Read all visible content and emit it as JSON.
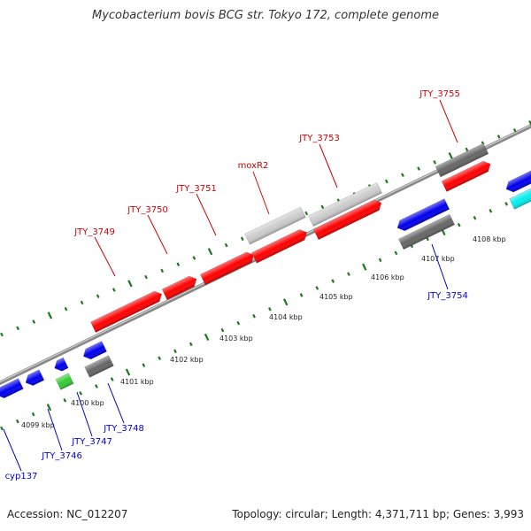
{
  "title": "Mycobacterium bovis BCG str. Tokyo 172, complete genome",
  "accession": "Accession: NC_012207",
  "summary": "Topology: circular; Length: 4,371,711 bp; Genes: 3,993",
  "colors": {
    "red": "#ff0000",
    "blue": "#0000ee",
    "gray": "#666666",
    "lightgray": "#cccccc",
    "green": "#33cc33",
    "cyan": "#00eeee",
    "tick": "#1a7a1a",
    "backbone": "#888888",
    "label_top": "#cc0000",
    "label_bottom": "#0000cc"
  },
  "ticks": [
    {
      "label": "4099 kbp"
    },
    {
      "label": "4100 kbp"
    },
    {
      "label": "4101 kbp"
    },
    {
      "label": "4102 kbp"
    },
    {
      "label": "4103 kbp"
    },
    {
      "label": "4104 kbp"
    },
    {
      "label": "4105 kbp"
    },
    {
      "label": "4106 kbp"
    },
    {
      "label": "4107 kbp"
    },
    {
      "label": "4108 kbp"
    }
  ],
  "gene_labels": [
    {
      "text": "JTY_3749",
      "strand": "top"
    },
    {
      "text": "JTY_3750",
      "strand": "top"
    },
    {
      "text": "JTY_3751",
      "strand": "top"
    },
    {
      "text": "moxR2",
      "strand": "top"
    },
    {
      "text": "JTY_3753",
      "strand": "top"
    },
    {
      "text": "JTY_3755",
      "strand": "top"
    },
    {
      "text": "JTY_3754",
      "strand": "bottom"
    },
    {
      "text": "JTY_3748",
      "strand": "bottom"
    },
    {
      "text": "JTY_3747",
      "strand": "bottom"
    },
    {
      "text": "JTY_3746",
      "strand": "bottom"
    },
    {
      "text": "cyp137",
      "strand": "bottom"
    }
  ]
}
